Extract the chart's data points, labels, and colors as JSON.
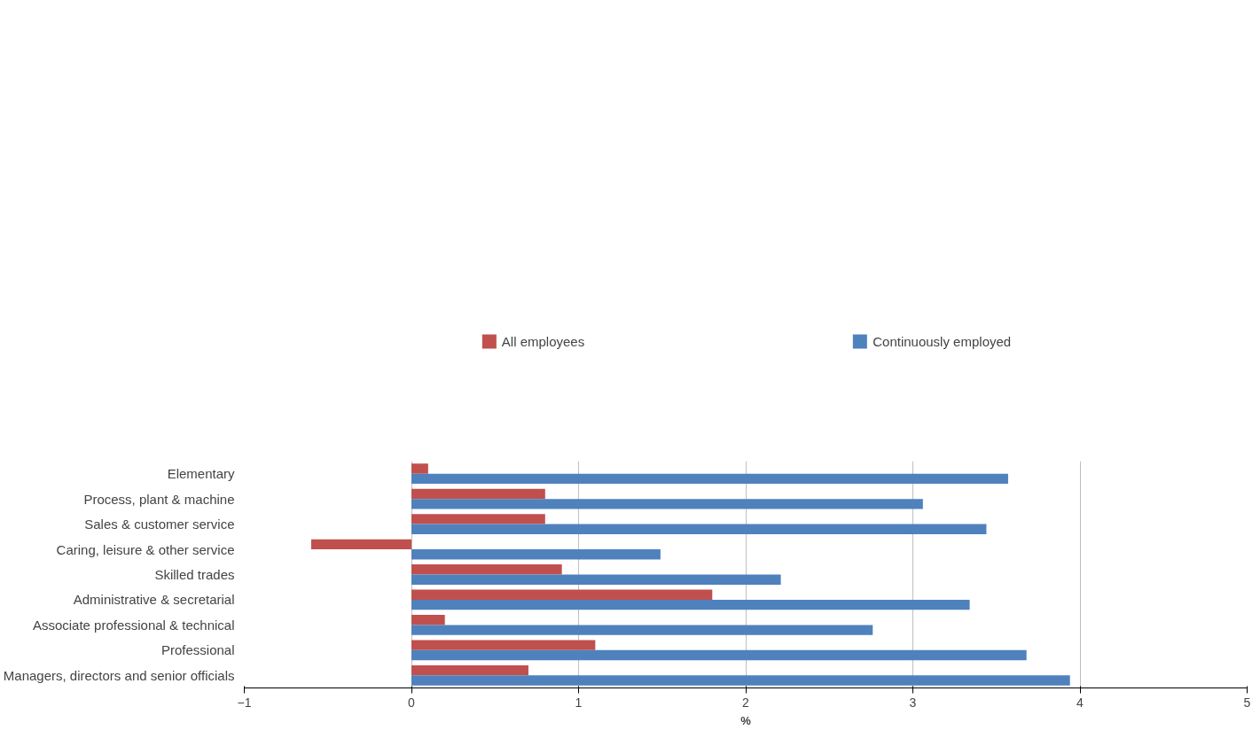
{
  "chart_data": {
    "type": "bar",
    "orientation": "horizontal",
    "xlabel": "%",
    "categories": [
      "Elementary",
      "Process, plant & machine",
      "Sales & customer service",
      "Caring, leisure & other service",
      "Skilled trades",
      "Administrative & secretarial",
      "Associate professional & technical",
      "Professional",
      "Managers, directors and senior officials"
    ],
    "series": [
      {
        "name": "All employees",
        "color": "#c0504d",
        "values": [
          0.1,
          0.8,
          0.8,
          -0.6,
          0.9,
          1.8,
          0.2,
          1.1,
          0.7
        ]
      },
      {
        "name": "Continuously employed",
        "color": "#4f81bd",
        "values": [
          3.57,
          3.06,
          3.44,
          1.49,
          2.21,
          3.34,
          2.76,
          3.68,
          3.94
        ]
      }
    ],
    "xlim": [
      -1,
      5
    ],
    "xticks": [
      -1,
      0,
      1,
      2,
      3,
      4,
      5
    ],
    "grid": "x",
    "legend": "top"
  }
}
